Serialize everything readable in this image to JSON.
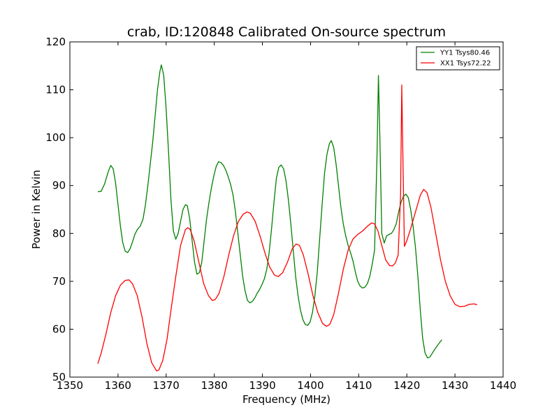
{
  "chart_data": {
    "type": "line",
    "title": "crab, ID:120848 Calibrated On-source spectrum",
    "xlabel": "Frequency (MHz)",
    "ylabel": "Power in Kelvin",
    "xlim": [
      1350,
      1440
    ],
    "ylim": [
      50,
      120
    ],
    "xticks": [
      1350,
      1360,
      1370,
      1380,
      1390,
      1400,
      1410,
      1420,
      1430,
      1440
    ],
    "yticks": [
      50,
      60,
      70,
      80,
      90,
      100,
      110,
      120
    ],
    "grid": false,
    "legend_position": "top-right",
    "series": [
      {
        "name": "YY1 Tsys80.46",
        "color": "#008000",
        "points": [
          [
            1355.8,
            88.7
          ],
          [
            1356.5,
            88.8
          ],
          [
            1357.2,
            90.3
          ],
          [
            1358.0,
            93.0
          ],
          [
            1358.5,
            94.2
          ],
          [
            1359.0,
            93.5
          ],
          [
            1359.5,
            90.5
          ],
          [
            1360.0,
            86.0
          ],
          [
            1360.5,
            81.5
          ],
          [
            1361.0,
            78.0
          ],
          [
            1361.5,
            76.3
          ],
          [
            1362.0,
            76.0
          ],
          [
            1362.5,
            76.8
          ],
          [
            1363.0,
            78.2
          ],
          [
            1363.5,
            79.8
          ],
          [
            1364.0,
            80.8
          ],
          [
            1364.6,
            81.5
          ],
          [
            1365.2,
            83.0
          ],
          [
            1365.7,
            86.0
          ],
          [
            1366.2,
            90.0
          ],
          [
            1366.7,
            94.5
          ],
          [
            1367.2,
            99.0
          ],
          [
            1367.7,
            104.5
          ],
          [
            1368.2,
            110.0
          ],
          [
            1368.7,
            113.8
          ],
          [
            1369.0,
            115.2
          ],
          [
            1369.5,
            113.0
          ],
          [
            1370.0,
            106.0
          ],
          [
            1370.5,
            97.0
          ],
          [
            1371.0,
            87.0
          ],
          [
            1371.5,
            80.5
          ],
          [
            1372.0,
            78.8
          ],
          [
            1372.5,
            80.0
          ],
          [
            1373.0,
            82.5
          ],
          [
            1373.5,
            85.0
          ],
          [
            1374.0,
            86.0
          ],
          [
            1374.4,
            85.8
          ],
          [
            1374.9,
            83.0
          ],
          [
            1375.4,
            78.5
          ],
          [
            1375.9,
            74.0
          ],
          [
            1376.4,
            71.5
          ],
          [
            1376.9,
            71.8
          ],
          [
            1377.4,
            74.0
          ],
          [
            1377.9,
            78.5
          ],
          [
            1378.4,
            83.0
          ],
          [
            1378.9,
            86.5
          ],
          [
            1379.4,
            89.5
          ],
          [
            1379.9,
            92.0
          ],
          [
            1380.4,
            94.0
          ],
          [
            1380.9,
            95.0
          ],
          [
            1381.4,
            94.8
          ],
          [
            1381.9,
            94.2
          ],
          [
            1382.4,
            93.2
          ],
          [
            1382.9,
            91.8
          ],
          [
            1383.4,
            90.2
          ],
          [
            1383.9,
            88.0
          ],
          [
            1384.4,
            84.5
          ],
          [
            1384.9,
            80.0
          ],
          [
            1385.4,
            75.5
          ],
          [
            1385.9,
            71.0
          ],
          [
            1386.4,
            68.0
          ],
          [
            1386.9,
            66.0
          ],
          [
            1387.4,
            65.5
          ],
          [
            1387.9,
            65.8
          ],
          [
            1388.4,
            66.5
          ],
          [
            1388.9,
            67.5
          ],
          [
            1389.4,
            68.3
          ],
          [
            1389.9,
            69.3
          ],
          [
            1390.4,
            70.5
          ],
          [
            1390.9,
            72.5
          ],
          [
            1391.4,
            76.0
          ],
          [
            1391.9,
            81.0
          ],
          [
            1392.4,
            86.5
          ],
          [
            1392.9,
            91.5
          ],
          [
            1393.4,
            93.8
          ],
          [
            1393.9,
            94.3
          ],
          [
            1394.4,
            93.5
          ],
          [
            1394.9,
            91.0
          ],
          [
            1395.4,
            87.0
          ],
          [
            1395.9,
            82.0
          ],
          [
            1396.4,
            76.5
          ],
          [
            1396.9,
            71.0
          ],
          [
            1397.4,
            67.0
          ],
          [
            1397.9,
            64.0
          ],
          [
            1398.4,
            62.0
          ],
          [
            1398.9,
            61.0
          ],
          [
            1399.4,
            60.8
          ],
          [
            1399.9,
            61.5
          ],
          [
            1400.4,
            63.5
          ],
          [
            1400.9,
            67.0
          ],
          [
            1401.4,
            72.0
          ],
          [
            1401.9,
            79.0
          ],
          [
            1402.4,
            86.0
          ],
          [
            1402.9,
            92.5
          ],
          [
            1403.4,
            96.5
          ],
          [
            1403.9,
            98.7
          ],
          [
            1404.3,
            99.4
          ],
          [
            1404.8,
            98.0
          ],
          [
            1405.3,
            94.5
          ],
          [
            1405.8,
            90.0
          ],
          [
            1406.3,
            85.5
          ],
          [
            1406.8,
            82.0
          ],
          [
            1407.3,
            79.5
          ],
          [
            1407.8,
            77.5
          ],
          [
            1408.3,
            76.0
          ],
          [
            1408.8,
            74.3
          ],
          [
            1409.3,
            72.0
          ],
          [
            1409.8,
            70.0
          ],
          [
            1410.3,
            69.0
          ],
          [
            1410.8,
            68.6
          ],
          [
            1411.3,
            68.8
          ],
          [
            1411.8,
            69.5
          ],
          [
            1412.3,
            71.0
          ],
          [
            1412.8,
            73.5
          ],
          [
            1413.3,
            76.5
          ],
          [
            1413.8,
            96.0
          ],
          [
            1414.1,
            113.0
          ],
          [
            1414.4,
            100.0
          ],
          [
            1414.8,
            80.0
          ],
          [
            1415.3,
            78.0
          ],
          [
            1415.8,
            79.5
          ],
          [
            1416.3,
            79.8
          ],
          [
            1416.8,
            80.0
          ],
          [
            1417.3,
            80.8
          ],
          [
            1417.8,
            82.0
          ],
          [
            1418.3,
            84.5
          ],
          [
            1418.8,
            86.5
          ],
          [
            1419.3,
            87.8
          ],
          [
            1419.8,
            88.2
          ],
          [
            1420.3,
            87.5
          ],
          [
            1420.8,
            85.0
          ],
          [
            1421.3,
            81.5
          ],
          [
            1421.8,
            77.0
          ],
          [
            1422.3,
            71.0
          ],
          [
            1422.8,
            64.0
          ],
          [
            1423.3,
            58.0
          ],
          [
            1423.8,
            55.0
          ],
          [
            1424.3,
            54.0
          ],
          [
            1424.8,
            54.2
          ],
          [
            1425.3,
            55.0
          ],
          [
            1425.8,
            55.8
          ],
          [
            1426.3,
            56.5
          ],
          [
            1426.8,
            57.2
          ],
          [
            1427.3,
            57.8
          ]
        ]
      },
      {
        "name": "XX1 Tsys72.22",
        "color": "#ff0000",
        "points": [
          [
            1355.8,
            52.8
          ],
          [
            1356.5,
            55.0
          ],
          [
            1357.5,
            59.0
          ],
          [
            1358.5,
            63.5
          ],
          [
            1359.5,
            67.0
          ],
          [
            1360.5,
            69.2
          ],
          [
            1361.5,
            70.2
          ],
          [
            1362.3,
            70.3
          ],
          [
            1363.0,
            69.5
          ],
          [
            1364.0,
            67.0
          ],
          [
            1365.0,
            62.5
          ],
          [
            1366.0,
            57.0
          ],
          [
            1367.0,
            53.0
          ],
          [
            1368.0,
            51.3
          ],
          [
            1368.5,
            51.5
          ],
          [
            1369.3,
            53.5
          ],
          [
            1370.2,
            58.0
          ],
          [
            1371.0,
            64.0
          ],
          [
            1372.0,
            71.0
          ],
          [
            1373.0,
            77.5
          ],
          [
            1374.0,
            80.8
          ],
          [
            1374.5,
            81.2
          ],
          [
            1375.0,
            80.8
          ],
          [
            1375.8,
            78.5
          ],
          [
            1376.8,
            74.0
          ],
          [
            1377.8,
            69.5
          ],
          [
            1378.8,
            67.0
          ],
          [
            1379.6,
            66.0
          ],
          [
            1380.2,
            66.2
          ],
          [
            1381.0,
            67.5
          ],
          [
            1382.0,
            71.0
          ],
          [
            1383.0,
            75.5
          ],
          [
            1384.0,
            79.5
          ],
          [
            1385.0,
            82.5
          ],
          [
            1386.0,
            84.0
          ],
          [
            1386.8,
            84.5
          ],
          [
            1387.5,
            84.2
          ],
          [
            1388.5,
            82.5
          ],
          [
            1389.5,
            79.5
          ],
          [
            1390.5,
            76.0
          ],
          [
            1391.5,
            73.0
          ],
          [
            1392.5,
            71.3
          ],
          [
            1393.3,
            71.0
          ],
          [
            1394.2,
            71.8
          ],
          [
            1395.2,
            74.0
          ],
          [
            1396.2,
            76.8
          ],
          [
            1397.0,
            77.8
          ],
          [
            1397.7,
            77.5
          ],
          [
            1398.5,
            75.5
          ],
          [
            1399.5,
            71.5
          ],
          [
            1400.5,
            67.0
          ],
          [
            1401.5,
            63.5
          ],
          [
            1402.5,
            61.2
          ],
          [
            1403.3,
            60.6
          ],
          [
            1404.0,
            61.0
          ],
          [
            1404.8,
            63.0
          ],
          [
            1405.8,
            67.5
          ],
          [
            1406.8,
            72.5
          ],
          [
            1407.8,
            76.5
          ],
          [
            1408.8,
            78.8
          ],
          [
            1409.8,
            79.8
          ],
          [
            1410.8,
            80.5
          ],
          [
            1411.8,
            81.5
          ],
          [
            1412.7,
            82.2
          ],
          [
            1413.3,
            82.0
          ],
          [
            1414.0,
            80.5
          ],
          [
            1414.8,
            77.5
          ],
          [
            1415.6,
            74.5
          ],
          [
            1416.4,
            73.3
          ],
          [
            1417.0,
            73.2
          ],
          [
            1417.6,
            73.8
          ],
          [
            1418.2,
            75.5
          ],
          [
            1418.7,
            88.0
          ],
          [
            1418.95,
            111.0
          ],
          [
            1419.2,
            95.0
          ],
          [
            1419.5,
            77.3
          ],
          [
            1420.0,
            78.5
          ],
          [
            1420.8,
            81.0
          ],
          [
            1421.8,
            84.5
          ],
          [
            1422.8,
            88.0
          ],
          [
            1423.5,
            89.2
          ],
          [
            1424.2,
            88.5
          ],
          [
            1425.0,
            85.5
          ],
          [
            1426.0,
            80.0
          ],
          [
            1427.0,
            74.5
          ],
          [
            1428.0,
            70.0
          ],
          [
            1429.0,
            67.0
          ],
          [
            1430.0,
            65.2
          ],
          [
            1431.0,
            64.7
          ],
          [
            1432.0,
            64.8
          ],
          [
            1433.0,
            65.2
          ],
          [
            1434.0,
            65.3
          ],
          [
            1434.6,
            65.1
          ]
        ]
      }
    ]
  }
}
